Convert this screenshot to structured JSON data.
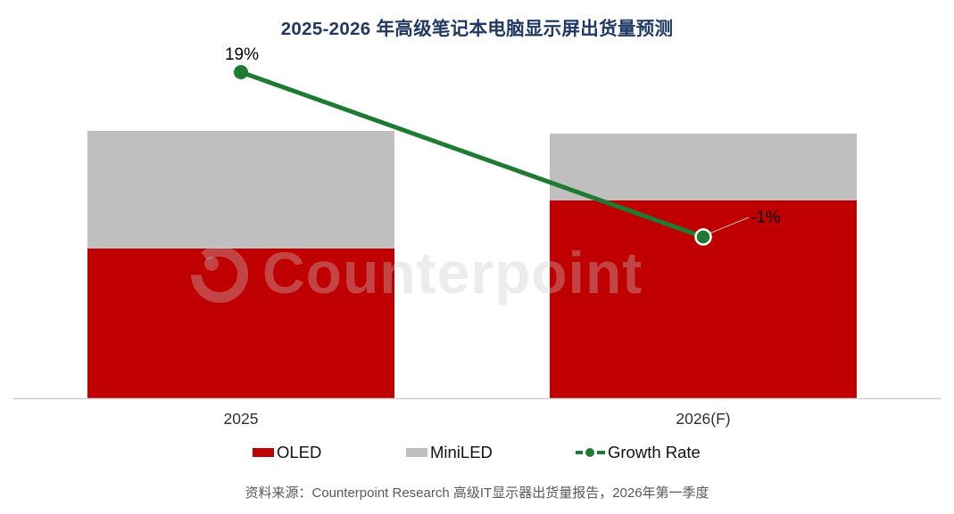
{
  "title": "2025-2026 年高级笔记本电脑显示屏出货量预测",
  "watermark_text": "Counterpoint",
  "source_note": "资料来源：Counterpoint Research 高级IT显示器出货量报告，2026年第一季度",
  "colors": {
    "oled": "#C00000",
    "miniled": "#BFBFBF",
    "growth": "#1F7A33",
    "title": "#1F3864",
    "source": "#595959",
    "axis": "#CFCFCF",
    "label": "#000000",
    "xlabel": "#303030",
    "leader": "#BFBFBF"
  },
  "legend": [
    {
      "label": "OLED"
    },
    {
      "label": "MiniLED"
    },
    {
      "label": "Growth Rate"
    }
  ],
  "chart_data": {
    "type": "bar",
    "subtype": "stacked-column-with-growth-line",
    "title": "2025-2026 年高级笔记本电脑显示屏出货量预测",
    "categories": [
      "2025",
      "2026(F)"
    ],
    "series": [
      {
        "name": "OLED",
        "type": "bar",
        "values": [
          56,
          74
        ]
      },
      {
        "name": "MiniLED",
        "type": "bar",
        "values": [
          44,
          25
        ]
      },
      {
        "name": "Growth Rate",
        "type": "line",
        "axis": "secondary",
        "unit": "%",
        "values": [
          19,
          -1
        ],
        "point_labels": [
          "19%",
          "-1%"
        ]
      }
    ],
    "value_axis": {
      "visible": false,
      "note": "no value axis shown; bar values are estimates indexed so 2025 total = 100"
    },
    "grid": false,
    "legend_position": "bottom",
    "source": "资料来源：Counterpoint Research 高级IT显示器出货量报告，2026年第一季度"
  }
}
